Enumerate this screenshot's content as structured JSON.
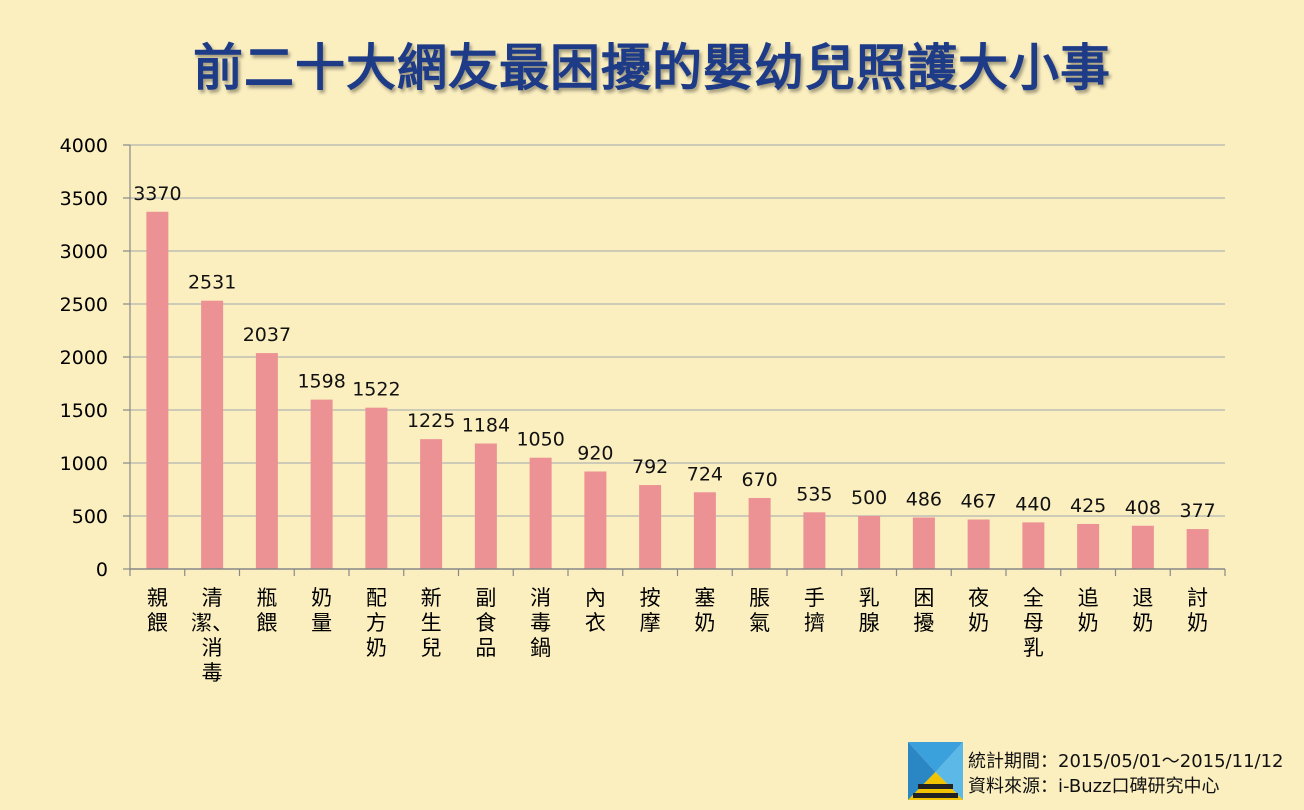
{
  "chart_data": {
    "type": "bar",
    "title": "前二十大網友最困擾的嬰幼兒照護大小事",
    "categories": [
      "親餵",
      "清潔、消毒",
      "瓶餵",
      "奶量",
      "配方奶",
      "新生兒",
      "副食品",
      "消毒鍋",
      "內衣",
      "按摩",
      "塞奶",
      "脹氣",
      "手擠",
      "乳腺",
      "困擾",
      "夜奶",
      "全母乳",
      "追奶",
      "退奶",
      "討奶"
    ],
    "category_lines": [
      [
        "親",
        "餵"
      ],
      [
        "清",
        "潔、",
        "消",
        "毒"
      ],
      [
        "瓶",
        "餵"
      ],
      [
        "奶",
        "量"
      ],
      [
        "配",
        "方",
        "奶"
      ],
      [
        "新",
        "生",
        "兒"
      ],
      [
        "副",
        "食",
        "品"
      ],
      [
        "消",
        "毒",
        "鍋"
      ],
      [
        "內",
        "衣"
      ],
      [
        "按",
        "摩"
      ],
      [
        "塞",
        "奶"
      ],
      [
        "脹",
        "氣"
      ],
      [
        "手",
        "擠"
      ],
      [
        "乳",
        "腺"
      ],
      [
        "困",
        "擾"
      ],
      [
        "夜",
        "奶"
      ],
      [
        "全",
        "母",
        "乳"
      ],
      [
        "追",
        "奶"
      ],
      [
        "退",
        "奶"
      ],
      [
        "討",
        "奶"
      ]
    ],
    "values": [
      3370,
      2531,
      2037,
      1598,
      1522,
      1225,
      1184,
      1050,
      920,
      792,
      724,
      670,
      535,
      500,
      486,
      467,
      440,
      425,
      408,
      377
    ],
    "ylim": [
      0,
      4000
    ],
    "yticks": [
      0,
      500,
      1000,
      1500,
      2000,
      2500,
      3000,
      3500,
      4000
    ],
    "grid": true,
    "bar_color": "#ec9294",
    "grid_color": "#b3b3b3"
  },
  "footer": {
    "period": "統計期間：2015/05/01～2015/11/12",
    "source": "資料來源：i-Buzz口碑研究中心"
  },
  "logo": {
    "icon": "i-buzz-logo-icon"
  }
}
